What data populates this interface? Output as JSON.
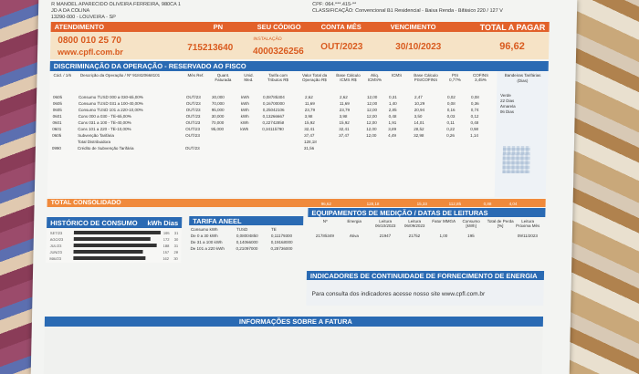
{
  "header": {
    "line1": "R MANOEL APARECIDO OLIVEIRA FERREIRA, 980CA 1",
    "line2": "JD A DA COLINA",
    "line3": "13290-000 - LOUVEIRA - SP",
    "cpf": "CPF: 064.***.415-**",
    "classificacao": "CLASSIFICAÇÃO: Convencional B1 Residencial - Baixa Renda - Bifásico 220 / 127 V"
  },
  "orange": {
    "atendimento": "ATENDIMENTO",
    "pn": "PN",
    "seu_codigo": "SEU CÓDIGO",
    "conta_mes": "CONTA MÊS",
    "vencimento": "VENCIMENTO",
    "total_pagar": "TOTAL A PAGAR",
    "phone": "0800 010 25 70",
    "site": "www.cpfl.com.br",
    "pn_value": "715213640",
    "instalacao_label": "INSTALAÇÃO",
    "instalacao_value": "4000326256",
    "conta_mes_value": "OUT/2023",
    "vencimento_value": "30/10/2023",
    "total_value": "96,62"
  },
  "discriminacao": {
    "title": "DISCRIMINAÇÃO DA OPERAÇÃO - RESERVADO AO FISCO",
    "headers": [
      "Cód. / 1/6",
      "Descrição da Operação / Nº 918420668101",
      "Mês Ref.",
      "Quant. Faturada",
      "Unid. Med.",
      "Tarifa com Tributos R$",
      "Valor Total da Operação R$",
      "Base Cálculo ICMS R$",
      "Alíq. ICMS%",
      "ICMS",
      "Base Cálculo PIS/COFINS",
      "PIS 0,77%",
      "COFINS 3,45%"
    ],
    "rows": [
      {
        "cod": "0605",
        "desc": "Consumo TUSD 000 a 030-65,00%",
        "mes": "OUT/23",
        "qt": "30,000",
        "un": "kWh",
        "tar": "0,08785304",
        "vt": "2,62",
        "bc": "2,62",
        "aliq": "12,00",
        "icms": "0,31",
        "bpc": "2,47",
        "pis": "0,02",
        "cof": "0,08"
      },
      {
        "cod": "0605",
        "desc": "Consumo TUSD 031 a 100-40,00%",
        "mes": "OUT/23",
        "qt": "70,000",
        "un": "kWh",
        "tar": "0,16700000",
        "vt": "11,69",
        "bc": "11,69",
        "aliq": "12,00",
        "icms": "1,40",
        "bpc": "10,29",
        "pis": "0,08",
        "cof": "0,36"
      },
      {
        "cod": "0605",
        "desc": "Consumo TUSD 101 a 220-10,00%",
        "mes": "OUT/23",
        "qt": "95,000",
        "un": "kWh",
        "tar": "0,25042106",
        "vt": "23,79",
        "bc": "23,79",
        "aliq": "12,00",
        "icms": "2,85",
        "bpc": "20,94",
        "pis": "0,16",
        "cof": "0,74"
      },
      {
        "cod": "0601",
        "desc": "Cons 000 a 030 - TE-65,00%",
        "mes": "OUT/23",
        "qt": "30,000",
        "un": "kWh",
        "tar": "0,13266667",
        "vt": "3,98",
        "bc": "3,98",
        "aliq": "12,00",
        "icms": "0,48",
        "bpc": "3,50",
        "pis": "0,03",
        "cof": "0,12"
      },
      {
        "cod": "0601",
        "desc": "Cons 031 a 100 - TE-40,00%",
        "mes": "OUT/23",
        "qt": "70,000",
        "un": "kWh",
        "tar": "0,22742858",
        "vt": "15,92",
        "bc": "15,92",
        "aliq": "12,00",
        "icms": "1,91",
        "bpc": "14,01",
        "pis": "0,11",
        "cof": "0,48"
      },
      {
        "cod": "0601",
        "desc": "Cons 101 a 220 - TE-10,00%",
        "mes": "OUT/23",
        "qt": "95,000",
        "un": "kWh",
        "tar": "0,34115790",
        "vt": "32,41",
        "bc": "32,41",
        "aliq": "12,00",
        "icms": "3,89",
        "bpc": "28,52",
        "pis": "0,22",
        "cof": "0,98"
      },
      {
        "cod": "0605",
        "desc": "Subvenção Tarifária",
        "mes": "OUT/23",
        "qt": "",
        "un": "",
        "tar": "",
        "vt": "37,47",
        "bc": "37,47",
        "aliq": "12,00",
        "icms": "4,49",
        "bpc": "32,98",
        "pis": "0,26",
        "cof": "1,14"
      },
      {
        "cod": "",
        "desc": "Total Distribuidora",
        "mes": "",
        "qt": "",
        "un": "",
        "tar": "",
        "vt": "128,18",
        "bc": "",
        "aliq": "",
        "icms": "",
        "bpc": "",
        "pis": "",
        "cof": ""
      },
      {
        "cod": "0990",
        "desc": "Crédito de Subvenção Tarifária",
        "mes": "OUT/23",
        "qt": "",
        "un": "",
        "tar": "",
        "vt": "31,56",
        "bc": "",
        "aliq": "",
        "icms": "",
        "bpc": "",
        "pis": "",
        "cof": ""
      }
    ],
    "side_title": "Bandeiras Tarifárias (Dias)",
    "side_items": [
      "Verde",
      "22 Dias",
      "Amarela",
      "06 Dias"
    ]
  },
  "total": {
    "label": "TOTAL CONSOLIDADO",
    "v1": "96,62",
    "v2": "128,18",
    "v3": "15,33",
    "v4": "112,85",
    "v5": "0,88",
    "v6": "4,04"
  },
  "historico": {
    "title": "HISTÓRICO DE CONSUMO",
    "unit": "kWh Dias",
    "rows": [
      {
        "mes": "SET/23",
        "val": "195",
        "dias": "31",
        "frac": 0.86
      },
      {
        "mes": "AGO/23",
        "val": "172",
        "dias": "30",
        "frac": 0.76
      },
      {
        "mes": "JUL/23",
        "val": "188",
        "dias": "31",
        "frac": 0.83
      },
      {
        "mes": "JUN/23",
        "val": "157",
        "dias": "29",
        "frac": 0.69
      },
      {
        "mes": "MAI/23",
        "val": "162",
        "dias": "30",
        "frac": 0.72
      }
    ]
  },
  "tarifa": {
    "title": "TARIFA ANEEL",
    "col1": "Consumo kWh",
    "col2": "TUSD",
    "col3": "TE",
    "rows": [
      {
        "faixa": "De 0 a 30 kWh",
        "tusd": "0,08004850",
        "te": "0,11179300"
      },
      {
        "faixa": "De 31 a 100 kWh",
        "tusd": "0,14066000",
        "te": "0,19168000"
      },
      {
        "faixa": "De 101 a 220 kWh",
        "tusd": "0,21097000",
        "te": "0,28736000"
      }
    ]
  },
  "equipamentos": {
    "title": "EQUIPAMENTOS DE MEDIÇÃO / DATAS DE LEITURAS",
    "headers": [
      "Nº",
      "Energia",
      "Leitura 06/10/2023",
      "Leitura 06/09/2023",
      "Fator MMGA",
      "Consumo [kWh]",
      "Total de Perda [%]",
      "Leitura Próxima Mês"
    ],
    "row": [
      "21785349",
      "Ativa",
      "21947",
      "21752",
      "1,00",
      "195",
      "",
      "09/11/2023"
    ]
  },
  "indicadores": {
    "title": "INDICADORES DE CONTINUIDADE DE FORNECIMENTO DE ENERGIA",
    "text": "Para consulta dos indicadores acesse nosso site www.cpfl.com.br"
  },
  "info": {
    "title": "INFORMAÇÕES SOBRE A FATURA"
  },
  "colors": {
    "orange": "#e2612a",
    "blue": "#2a6ab3",
    "paper": "#f3f4f2"
  }
}
